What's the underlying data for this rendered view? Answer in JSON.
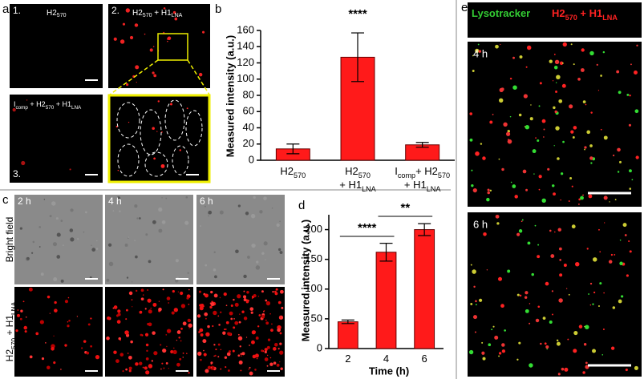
{
  "panels": {
    "a": "a",
    "b": "b",
    "c": "c",
    "d": "d",
    "e": "e"
  },
  "panel_a": {
    "images": [
      {
        "number": "1.",
        "label": [
          "H2",
          "570"
        ]
      },
      {
        "number": "2.",
        "label": [
          "H2",
          "570",
          " + H1",
          "LNA"
        ]
      },
      {
        "number": "3.",
        "label": [
          "I",
          "comp",
          " + H2",
          "570",
          " + H1",
          "LNA"
        ]
      }
    ]
  },
  "panel_c": {
    "times": [
      "2 h",
      "4 h",
      "6 h"
    ],
    "rows": [
      [
        "Bright field"
      ],
      [
        "H2",
        "570",
        " + H1",
        "LNA"
      ]
    ]
  },
  "panel_e": {
    "legend": [
      [
        "Lysotracker"
      ],
      [
        "H2",
        "570",
        " + H1",
        "LNA"
      ]
    ],
    "times": [
      "4 h",
      "6 h"
    ]
  },
  "chart_data": [
    {
      "type": "bar",
      "y_label": "Measured intensity (a.u.)",
      "categories": [
        [
          [
            "H2",
            "570"
          ]
        ],
        [
          [
            "H2",
            "570"
          ],
          [
            "+ H1",
            "LNA"
          ]
        ],
        [
          [
            "I",
            "comp",
            "+ H2",
            "570"
          ],
          [
            "+ H1",
            "LNA"
          ]
        ]
      ],
      "values": [
        14,
        127,
        19
      ],
      "errors": [
        6,
        30,
        3
      ],
      "color": "#ff1a1a",
      "ylim": [
        0,
        160
      ],
      "yticks": [
        0,
        20,
        40,
        60,
        80,
        100,
        120,
        140,
        160
      ],
      "annotations": [
        "****"
      ]
    },
    {
      "type": "bar",
      "y_label": "Measured intensity (a.u.)",
      "x_label": "Time (h)",
      "categories": [
        [
          [
            "2"
          ]
        ],
        [
          [
            "4"
          ]
        ],
        [
          [
            "6"
          ]
        ]
      ],
      "values": [
        45,
        162,
        200
      ],
      "errors": [
        3,
        15,
        10
      ],
      "color": "#ff1a1a",
      "ylim": [
        0,
        225
      ],
      "yticks": [
        0,
        50,
        100,
        150,
        200
      ],
      "annotations": [
        "****",
        "**"
      ]
    }
  ]
}
